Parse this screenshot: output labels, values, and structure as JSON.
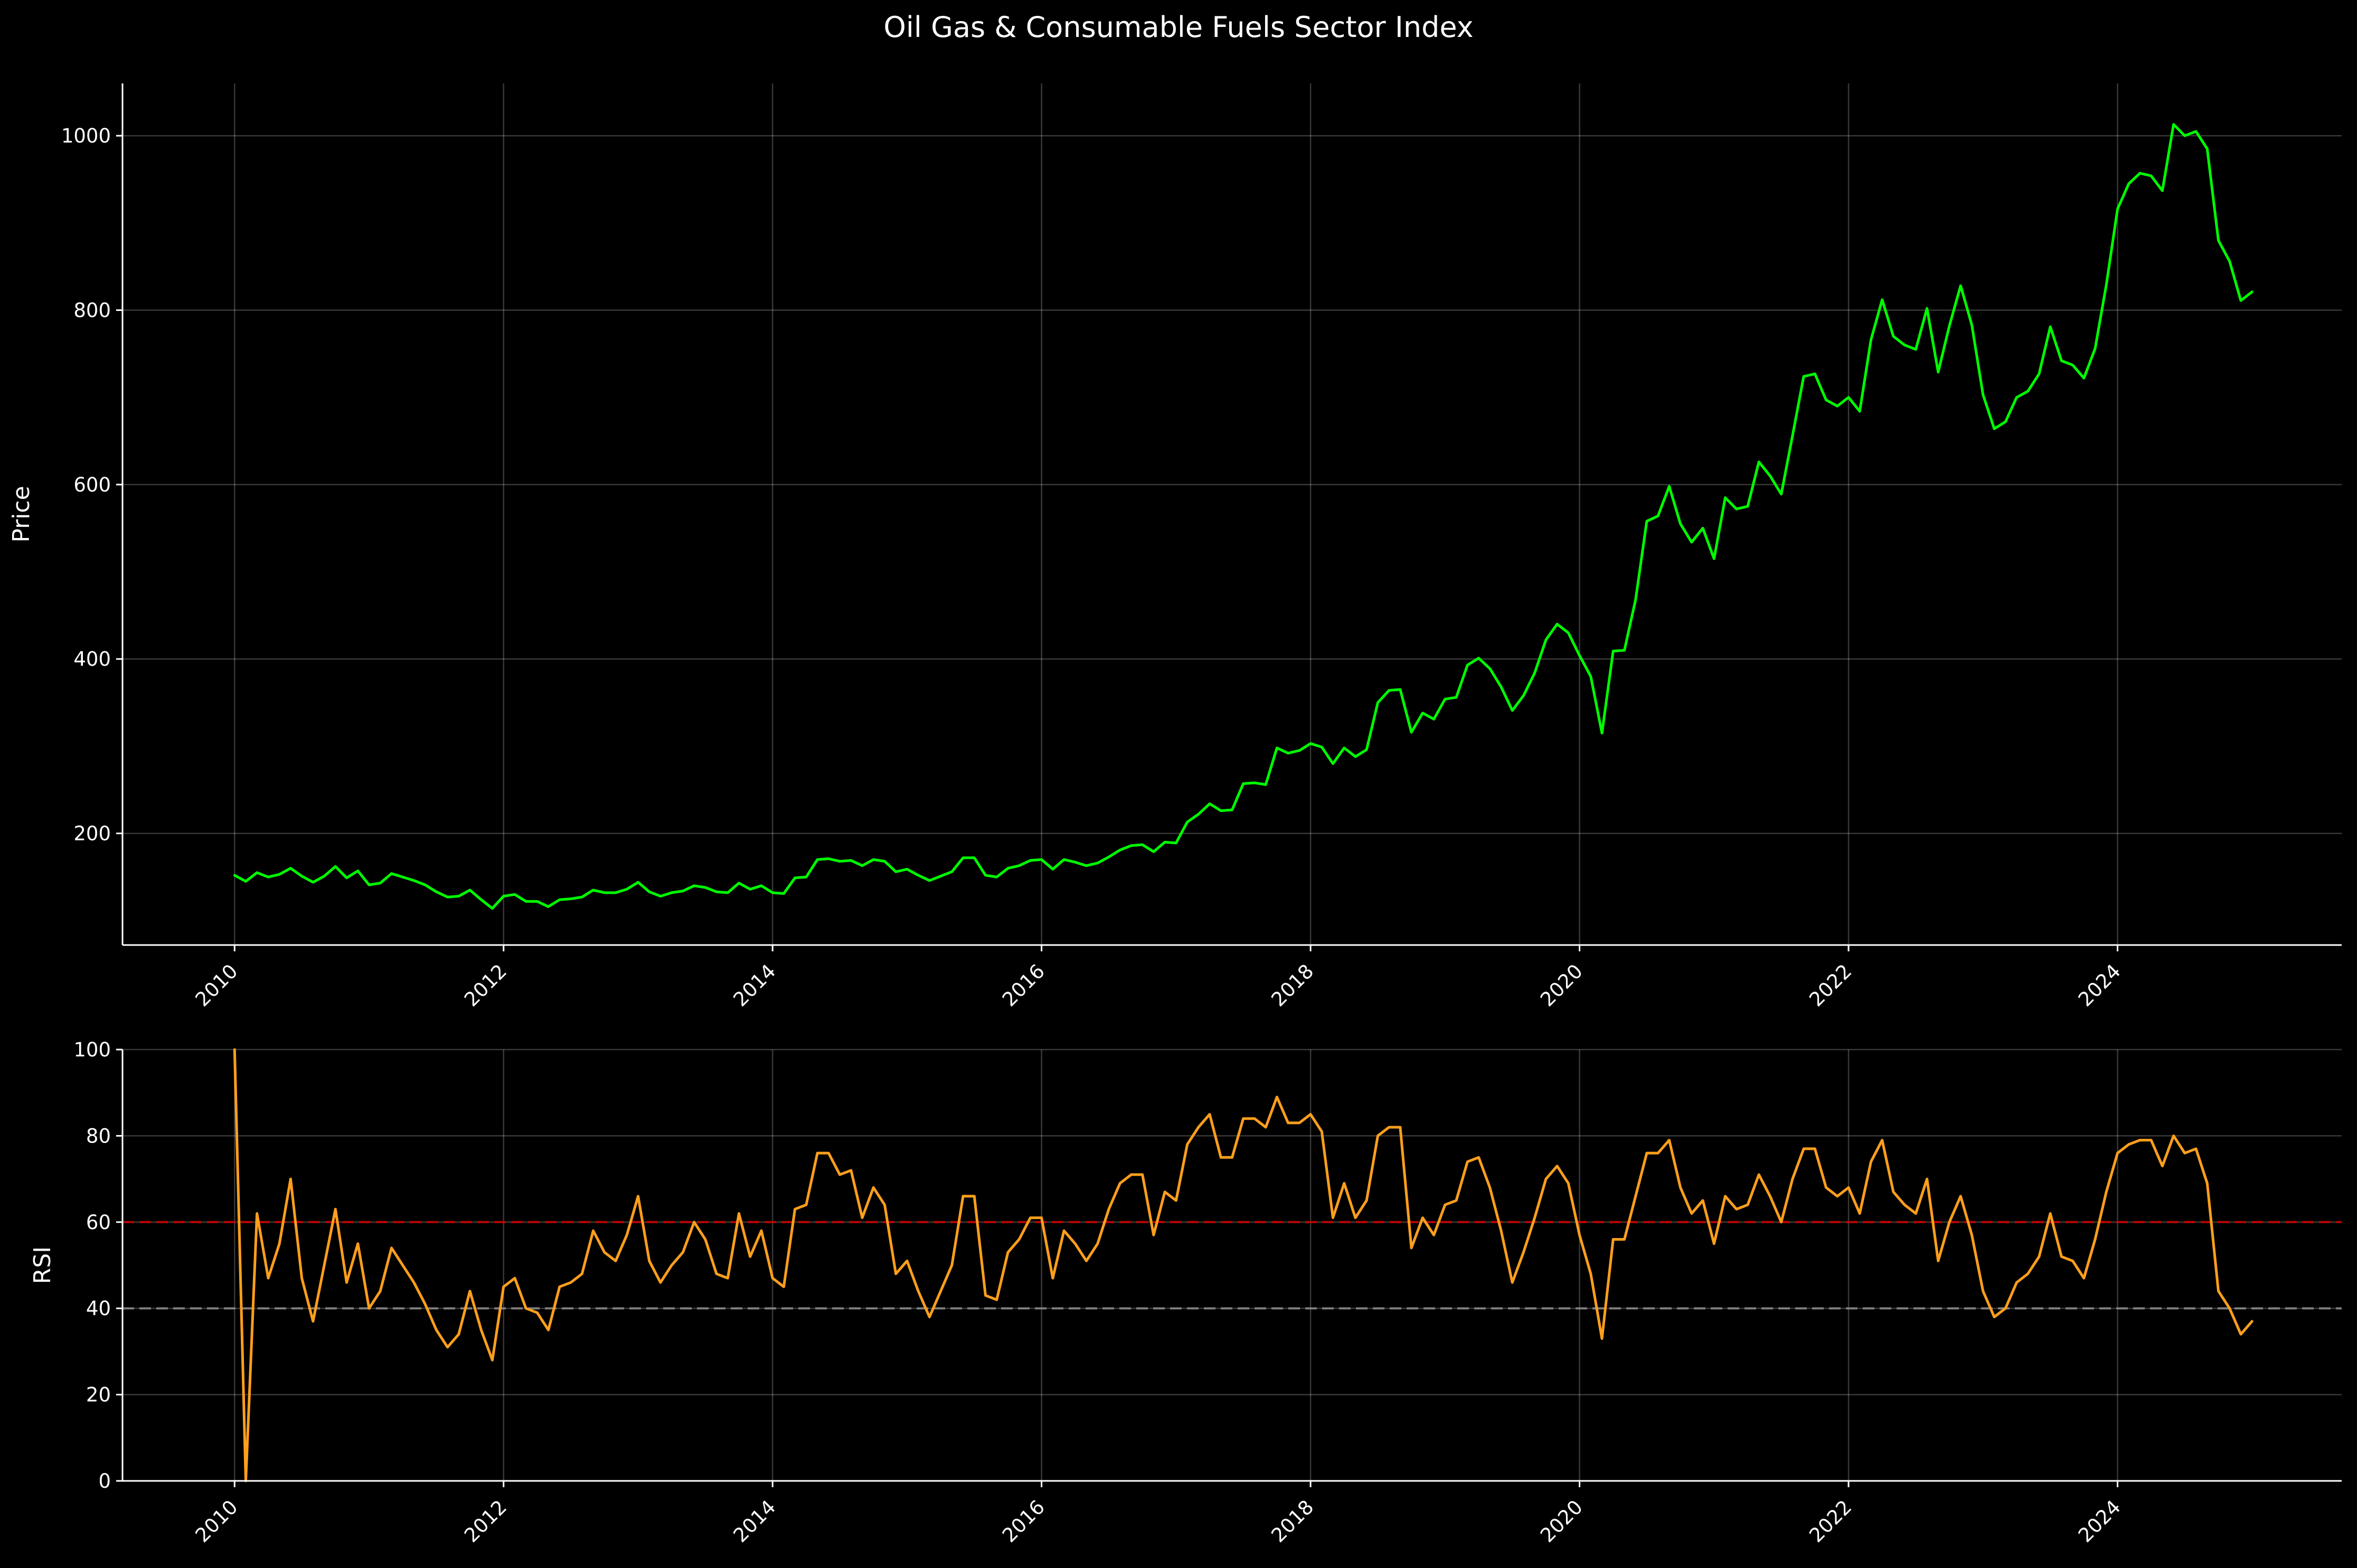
{
  "colors": {
    "background": "#000000",
    "text": "#ffffff",
    "price_line": "#00ff00",
    "rsi_line": "#ff9f1c",
    "overbought_line": "#cc0000",
    "oversold_line": "#888888"
  },
  "chart_data": [
    {
      "type": "line",
      "title": "Oil Gas & Consumable Fuels Sector Index",
      "xlabel": "",
      "ylabel": "Price",
      "x_ticks": [
        "2010",
        "2012",
        "2014",
        "2016",
        "2018",
        "2020",
        "2022",
        "2024"
      ],
      "y_ticks": [
        200,
        400,
        600,
        800,
        1000
      ],
      "xlim": [
        "2009-03",
        "2025-09"
      ],
      "ylim": [
        72,
        1060
      ],
      "grid": true,
      "legend": "none",
      "series": [
        {
          "color": "#00ff00",
          "x": [
            "2010-01",
            "2010-02",
            "2010-03",
            "2010-04",
            "2010-05",
            "2010-06",
            "2010-07",
            "2010-08",
            "2010-09",
            "2010-10",
            "2010-11",
            "2010-12",
            "2011-01",
            "2011-02",
            "2011-03",
            "2011-04",
            "2011-05",
            "2011-06",
            "2011-07",
            "2011-08",
            "2011-09",
            "2011-10",
            "2011-11",
            "2011-12",
            "2012-01",
            "2012-02",
            "2012-03",
            "2012-04",
            "2012-05",
            "2012-06",
            "2012-07",
            "2012-08",
            "2012-09",
            "2012-10",
            "2012-11",
            "2012-12",
            "2013-01",
            "2013-02",
            "2013-03",
            "2013-04",
            "2013-05",
            "2013-06",
            "2013-07",
            "2013-08",
            "2013-09",
            "2013-10",
            "2013-11",
            "2013-12",
            "2014-01",
            "2014-02",
            "2014-03",
            "2014-04",
            "2014-05",
            "2014-06",
            "2014-07",
            "2014-08",
            "2014-09",
            "2014-10",
            "2014-11",
            "2014-12",
            "2015-01",
            "2015-02",
            "2015-03",
            "2015-04",
            "2015-05",
            "2015-06",
            "2015-07",
            "2015-08",
            "2015-09",
            "2015-10",
            "2015-11",
            "2015-12",
            "2016-01",
            "2016-02",
            "2016-03",
            "2016-04",
            "2016-05",
            "2016-06",
            "2016-07",
            "2016-08",
            "2016-09",
            "2016-10",
            "2016-11",
            "2016-12",
            "2017-01",
            "2017-02",
            "2017-03",
            "2017-04",
            "2017-05",
            "2017-06",
            "2017-07",
            "2017-08",
            "2017-09",
            "2017-10",
            "2017-11",
            "2017-12",
            "2018-01",
            "2018-02",
            "2018-03",
            "2018-04",
            "2018-05",
            "2018-06",
            "2018-07",
            "2018-08",
            "2018-09",
            "2018-10",
            "2018-11",
            "2018-12",
            "2019-01",
            "2019-02",
            "2019-03",
            "2019-04",
            "2019-05",
            "2019-06",
            "2019-07",
            "2019-08",
            "2019-09",
            "2019-10",
            "2019-11",
            "2019-12",
            "2020-01",
            "2020-02",
            "2020-03",
            "2020-04",
            "2020-05",
            "2020-06",
            "2020-07",
            "2020-08",
            "2020-09",
            "2020-10",
            "2020-11",
            "2020-12",
            "2021-01",
            "2021-02",
            "2021-03",
            "2021-04",
            "2021-05",
            "2021-06",
            "2021-07",
            "2021-08",
            "2021-09",
            "2021-10",
            "2021-11",
            "2021-12",
            "2022-01",
            "2022-02",
            "2022-03",
            "2022-04",
            "2022-05",
            "2022-06",
            "2022-07",
            "2022-08",
            "2022-09",
            "2022-10",
            "2022-11",
            "2022-12",
            "2023-01",
            "2023-02",
            "2023-03",
            "2023-04",
            "2023-05",
            "2023-06",
            "2023-07",
            "2023-08",
            "2023-09",
            "2023-10",
            "2023-11",
            "2023-12",
            "2024-01",
            "2024-02",
            "2024-03",
            "2024-04",
            "2024-05",
            "2024-06",
            "2024-07",
            "2024-08",
            "2024-09",
            "2024-10",
            "2024-11",
            "2024-12",
            "2025-01"
          ],
          "values": [
            152,
            145,
            155,
            150,
            153,
            160,
            151,
            144,
            151,
            162,
            149,
            157,
            141,
            143,
            154,
            150,
            146,
            141,
            133,
            127,
            128,
            135,
            124,
            114,
            128,
            130,
            122,
            122,
            116,
            124,
            125,
            127,
            135,
            132,
            132,
            136,
            144,
            133,
            128,
            132,
            134,
            140,
            138,
            133,
            132,
            143,
            136,
            140,
            132,
            131,
            149,
            150,
            170,
            171,
            168,
            169,
            163,
            170,
            168,
            156,
            159,
            152,
            146,
            151,
            156,
            172,
            172,
            152,
            150,
            160,
            163,
            169,
            170,
            159,
            170,
            167,
            163,
            166,
            173,
            181,
            186,
            187,
            179,
            190,
            189,
            213,
            222,
            234,
            226,
            227,
            257,
            258,
            256,
            298,
            292,
            295,
            303,
            299,
            280,
            298,
            288,
            296,
            350,
            364,
            365,
            316,
            338,
            331,
            354,
            356,
            393,
            401,
            389,
            368,
            341,
            358,
            384,
            422,
            440,
            430,
            404,
            380,
            315,
            409,
            410,
            468,
            558,
            564,
            598,
            555,
            534,
            550,
            515,
            585,
            572,
            575,
            626,
            610,
            589,
            656,
            724,
            727,
            697,
            690,
            700,
            684,
            766,
            812,
            770,
            760,
            755,
            802,
            729,
            782,
            828,
            783,
            703,
            664,
            672,
            700,
            707,
            727,
            781,
            742,
            737,
            722,
            756,
            829,
            916,
            945,
            957,
            954,
            937,
            1013,
            1000,
            1005,
            985,
            880,
            856,
            811,
            821
          ]
        }
      ]
    },
    {
      "type": "line",
      "title": "",
      "xlabel": "",
      "ylabel": "RSI",
      "x_ticks": [
        "2010",
        "2012",
        "2014",
        "2016",
        "2018",
        "2020",
        "2022",
        "2024"
      ],
      "y_ticks": [
        0,
        20,
        40,
        60,
        80,
        100
      ],
      "xlim": [
        "2009-03",
        "2025-09"
      ],
      "ylim": [
        0,
        100
      ],
      "grid": true,
      "legend": "none",
      "reference_lines": [
        {
          "y": 60,
          "color": "#cc0000",
          "style": "dashed"
        },
        {
          "y": 40,
          "color": "#888888",
          "style": "dashed"
        }
      ],
      "series": [
        {
          "color": "#ff9f1c",
          "x": [
            "2010-01",
            "2010-02",
            "2010-03",
            "2010-04",
            "2010-05",
            "2010-06",
            "2010-07",
            "2010-08",
            "2010-09",
            "2010-10",
            "2010-11",
            "2010-12",
            "2011-01",
            "2011-02",
            "2011-03",
            "2011-04",
            "2011-05",
            "2011-06",
            "2011-07",
            "2011-08",
            "2011-09",
            "2011-10",
            "2011-11",
            "2011-12",
            "2012-01",
            "2012-02",
            "2012-03",
            "2012-04",
            "2012-05",
            "2012-06",
            "2012-07",
            "2012-08",
            "2012-09",
            "2012-10",
            "2012-11",
            "2012-12",
            "2013-01",
            "2013-02",
            "2013-03",
            "2013-04",
            "2013-05",
            "2013-06",
            "2013-07",
            "2013-08",
            "2013-09",
            "2013-10",
            "2013-11",
            "2013-12",
            "2014-01",
            "2014-02",
            "2014-03",
            "2014-04",
            "2014-05",
            "2014-06",
            "2014-07",
            "2014-08",
            "2014-09",
            "2014-10",
            "2014-11",
            "2014-12",
            "2015-01",
            "2015-02",
            "2015-03",
            "2015-04",
            "2015-05",
            "2015-06",
            "2015-07",
            "2015-08",
            "2015-09",
            "2015-10",
            "2015-11",
            "2015-12",
            "2016-01",
            "2016-02",
            "2016-03",
            "2016-04",
            "2016-05",
            "2016-06",
            "2016-07",
            "2016-08",
            "2016-09",
            "2016-10",
            "2016-11",
            "2016-12",
            "2017-01",
            "2017-02",
            "2017-03",
            "2017-04",
            "2017-05",
            "2017-06",
            "2017-07",
            "2017-08",
            "2017-09",
            "2017-10",
            "2017-11",
            "2017-12",
            "2018-01",
            "2018-02",
            "2018-03",
            "2018-04",
            "2018-05",
            "2018-06",
            "2018-07",
            "2018-08",
            "2018-09",
            "2018-10",
            "2018-11",
            "2018-12",
            "2019-01",
            "2019-02",
            "2019-03",
            "2019-04",
            "2019-05",
            "2019-06",
            "2019-07",
            "2019-08",
            "2019-09",
            "2019-10",
            "2019-11",
            "2019-12",
            "2020-01",
            "2020-02",
            "2020-03",
            "2020-04",
            "2020-05",
            "2020-06",
            "2020-07",
            "2020-08",
            "2020-09",
            "2020-10",
            "2020-11",
            "2020-12",
            "2021-01",
            "2021-02",
            "2021-03",
            "2021-04",
            "2021-05",
            "2021-06",
            "2021-07",
            "2021-08",
            "2021-09",
            "2021-10",
            "2021-11",
            "2021-12",
            "2022-01",
            "2022-02",
            "2022-03",
            "2022-04",
            "2022-05",
            "2022-06",
            "2022-07",
            "2022-08",
            "2022-09",
            "2022-10",
            "2022-11",
            "2022-12",
            "2023-01",
            "2023-02",
            "2023-03",
            "2023-04",
            "2023-05",
            "2023-06",
            "2023-07",
            "2023-08",
            "2023-09",
            "2023-10",
            "2023-11",
            "2023-12",
            "2024-01",
            "2024-02",
            "2024-03",
            "2024-04",
            "2024-05",
            "2024-06",
            "2024-07",
            "2024-08",
            "2024-09",
            "2024-10",
            "2024-11",
            "2024-12",
            "2025-01"
          ],
          "values": [
            100,
            0,
            62,
            47,
            55,
            70,
            47,
            37,
            50,
            63,
            46,
            55,
            40,
            44,
            54,
            50,
            46,
            41,
            35,
            31,
            34,
            44,
            35,
            28,
            45,
            47,
            40,
            39,
            35,
            45,
            46,
            48,
            58,
            53,
            51,
            57,
            66,
            51,
            46,
            50,
            53,
            60,
            56,
            48,
            47,
            62,
            52,
            58,
            47,
            45,
            63,
            64,
            76,
            76,
            71,
            72,
            61,
            68,
            64,
            48,
            51,
            44,
            38,
            44,
            50,
            66,
            66,
            43,
            42,
            53,
            56,
            61,
            61,
            47,
            58,
            55,
            51,
            55,
            63,
            69,
            71,
            71,
            57,
            67,
            65,
            78,
            82,
            85,
            75,
            75,
            84,
            84,
            82,
            89,
            83,
            83,
            85,
            81,
            61,
            69,
            61,
            65,
            80,
            82,
            82,
            54,
            61,
            57,
            64,
            65,
            74,
            75,
            68,
            58,
            46,
            53,
            61,
            70,
            73,
            69,
            57,
            48,
            33,
            56,
            56,
            66,
            76,
            76,
            79,
            68,
            62,
            65,
            55,
            66,
            63,
            64,
            71,
            66,
            60,
            70,
            77,
            77,
            68,
            66,
            68,
            62,
            74,
            79,
            67,
            64,
            62,
            70,
            51,
            60,
            66,
            57,
            44,
            38,
            40,
            46,
            48,
            52,
            62,
            52,
            51,
            47,
            56,
            67,
            76,
            78,
            79,
            79,
            73,
            80,
            76,
            77,
            69,
            44,
            40,
            34,
            37
          ]
        }
      ]
    }
  ]
}
